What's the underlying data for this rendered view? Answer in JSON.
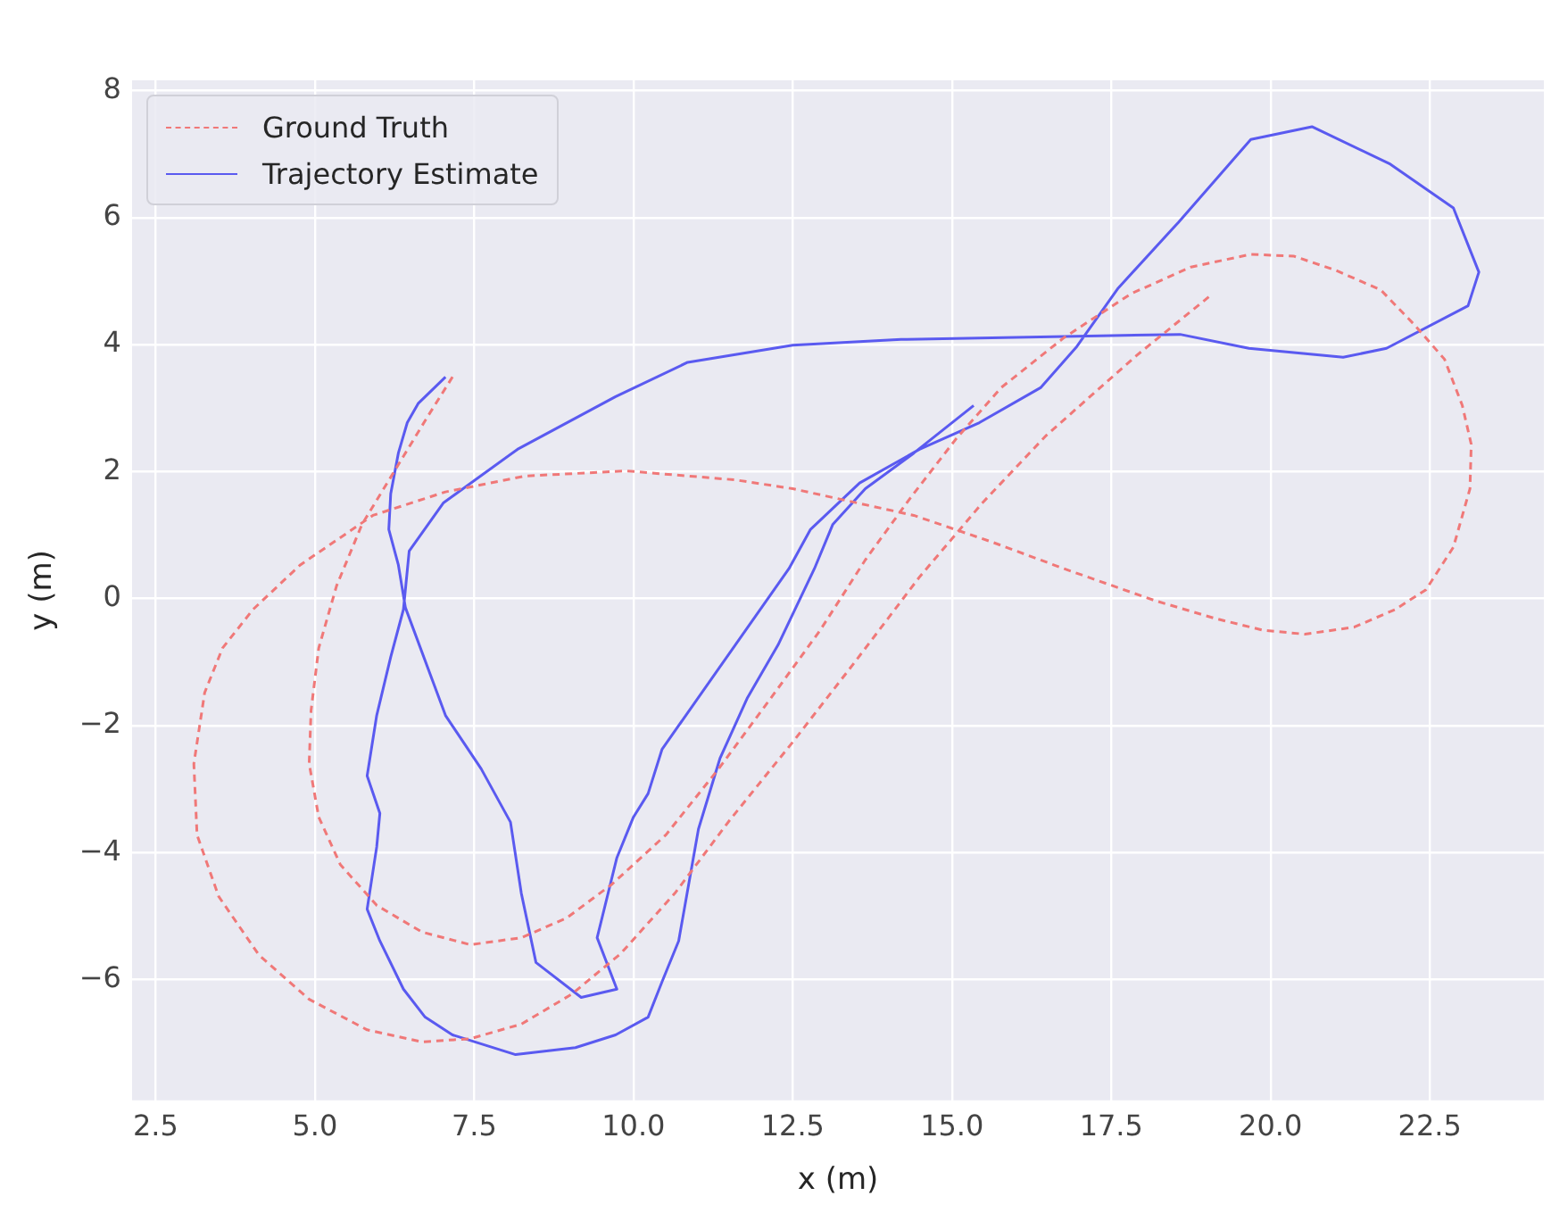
{
  "chart_data": {
    "type": "line",
    "xlabel": "x (m)",
    "ylabel": "y (m)",
    "grid": true,
    "legend": "top left",
    "marker": "none",
    "xlim": [
      2.13,
      24.29
    ],
    "ylim": [
      -7.9,
      8.16
    ],
    "xticks": [
      {
        "value": 2.5,
        "label": "2.5"
      },
      {
        "value": 5,
        "label": "5.0"
      },
      {
        "value": 7.5,
        "label": "7.5"
      },
      {
        "value": 10,
        "label": "10.0"
      },
      {
        "value": 12.5,
        "label": "12.5"
      },
      {
        "value": 15,
        "label": "15.0"
      },
      {
        "value": 17.5,
        "label": "17.5"
      },
      {
        "value": 20,
        "label": "20.0"
      },
      {
        "value": 22.5,
        "label": "22.5"
      }
    ],
    "yticks": [
      {
        "value": -6,
        "label": "−6"
      },
      {
        "value": -4,
        "label": "−4"
      },
      {
        "value": -2,
        "label": "−2"
      },
      0,
      2,
      4,
      6,
      8
    ],
    "series": [
      {
        "name": "Ground Truth",
        "color": "#f07878",
        "line_style": "dashed",
        "x": [
          7.16,
          6.76,
          6.25,
          5.74,
          5.34,
          5.06,
          4.94,
          4.91,
          5.06,
          5.4,
          5.97,
          6.68,
          7.44,
          8.24,
          8.95,
          9.66,
          10.51,
          11.36,
          12.22,
          12.93,
          13.64,
          14.35,
          15.06,
          15.77,
          16.76,
          17.81,
          18.75,
          19.69,
          20.37,
          21.02,
          21.73,
          22.24,
          22.73,
          23.01,
          23.15,
          23.13,
          22.87,
          22.44,
          21.96,
          21.31,
          20.54,
          19.89,
          19.12,
          18.18,
          16.76,
          15.63,
          14.4,
          12.5,
          11.59,
          9.89,
          8.3,
          7.05,
          5.91,
          4.77,
          4.03,
          3.55,
          3.27,
          3.1,
          3.15,
          3.49,
          4.12,
          4.91,
          5.82,
          6.68,
          7.44,
          8.24,
          9.03,
          9.8,
          10.65,
          11.51,
          12.5,
          13.49,
          14.49,
          15.48,
          16.48,
          17.9,
          19.03
        ],
        "values": [
          3.49,
          2.85,
          2.01,
          1.17,
          0.2,
          -0.78,
          -1.76,
          -2.6,
          -3.44,
          -4.19,
          -4.83,
          -5.25,
          -5.45,
          -5.34,
          -5.03,
          -4.5,
          -3.72,
          -2.65,
          -1.48,
          -0.5,
          0.61,
          1.59,
          2.51,
          3.32,
          4.11,
          4.8,
          5.22,
          5.42,
          5.39,
          5.17,
          4.86,
          4.33,
          3.77,
          3.04,
          2.43,
          1.73,
          0.81,
          0.14,
          -0.17,
          -0.45,
          -0.56,
          -0.5,
          -0.31,
          -0.03,
          0.47,
          0.89,
          1.31,
          1.73,
          1.87,
          2.01,
          1.93,
          1.68,
          1.31,
          0.53,
          -0.17,
          -0.78,
          -1.48,
          -2.6,
          -3.72,
          -4.69,
          -5.61,
          -6.31,
          -6.79,
          -6.98,
          -6.93,
          -6.7,
          -6.23,
          -5.59,
          -4.64,
          -3.49,
          -2.26,
          -0.98,
          0.34,
          1.51,
          2.57,
          3.83,
          4.75
        ]
      },
      {
        "name": "Trajectory Estimate",
        "color": "#5a5af0",
        "line_style": "solid",
        "x": [
          7.05,
          6.62,
          6.45,
          6.31,
          6.19,
          6.16,
          6.31,
          6.42,
          7.05,
          7.61,
          8.07,
          8.24,
          8.47,
          9.18,
          9.74,
          9.43,
          9.74,
          10,
          10.23,
          10.45,
          12.44,
          12.78,
          13.55,
          14.49,
          15.43,
          16.39,
          16.96,
          17.61,
          18.55,
          19.69,
          20.65,
          21.88,
          22.87,
          23.27,
          23.1,
          21.82,
          21.14,
          19.66,
          18.58,
          16.96,
          14.2,
          12.5,
          10.85,
          9.72,
          8.18,
          7.02,
          6.48,
          6.39,
          6.19,
          5.97,
          5.82,
          6.02,
          5.97,
          5.82,
          6.02,
          6.39,
          6.73,
          7.16,
          8.15,
          9.09,
          9.72,
          10.23,
          10.45,
          10.71,
          11.02,
          11.36,
          11.79,
          12.27,
          12.84,
          13.13,
          13.64,
          14.4,
          15.34
        ],
        "values": [
          3.49,
          3.07,
          2.77,
          2.29,
          1.65,
          1.09,
          0.53,
          -0.14,
          -1.84,
          -2.68,
          -3.52,
          -4.64,
          -5.73,
          -6.28,
          -6.15,
          -5.34,
          -4.08,
          -3.44,
          -3.07,
          -2.37,
          0.47,
          1.09,
          1.82,
          2.35,
          2.77,
          3.32,
          3.97,
          4.89,
          5.92,
          7.23,
          7.43,
          6.84,
          6.15,
          5.14,
          4.61,
          3.94,
          3.8,
          3.94,
          4.16,
          4.13,
          4.08,
          3.99,
          3.72,
          3.18,
          2.35,
          1.51,
          0.75,
          -0.17,
          -0.92,
          -1.84,
          -2.79,
          -3.38,
          -3.91,
          -4.89,
          -5.39,
          -6.15,
          -6.59,
          -6.87,
          -7.18,
          -7.07,
          -6.87,
          -6.59,
          -6.03,
          -5.39,
          -3.63,
          -2.51,
          -1.56,
          -0.73,
          0.47,
          1.17,
          1.73,
          2.29,
          3.04
        ]
      }
    ]
  }
}
